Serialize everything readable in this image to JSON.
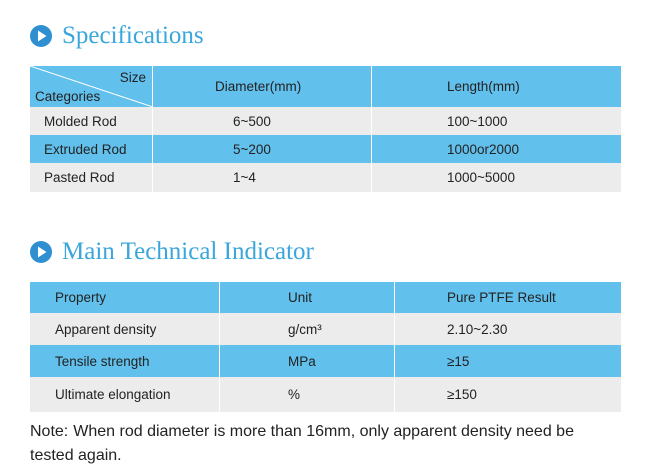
{
  "specifications": {
    "title": "Specifications",
    "header": {
      "size": "Size",
      "categories": "Categories",
      "columns": [
        "Diameter(mm)",
        "Length(mm)"
      ]
    },
    "rows": [
      [
        "Molded Rod",
        "6~500",
        "100~1000"
      ],
      [
        "Extruded Rod",
        "5~200",
        "1000or2000"
      ],
      [
        "Pasted Rod",
        "1~4",
        "1000~5000"
      ]
    ]
  },
  "indicator": {
    "title": "Main Technical Indicator",
    "header": [
      "Property",
      "Unit",
      "Pure PTFE Result"
    ],
    "rows": [
      [
        "Apparent density",
        "g/cm³",
        "2.10~2.30"
      ],
      [
        "Tensile strength",
        "MPa",
        "≥15"
      ],
      [
        "Ultimate elongation",
        "%",
        "≥150"
      ]
    ]
  },
  "note": {
    "label": "Note:",
    "text": "When rod diameter is more than 16mm, only apparent density need be tested again."
  }
}
